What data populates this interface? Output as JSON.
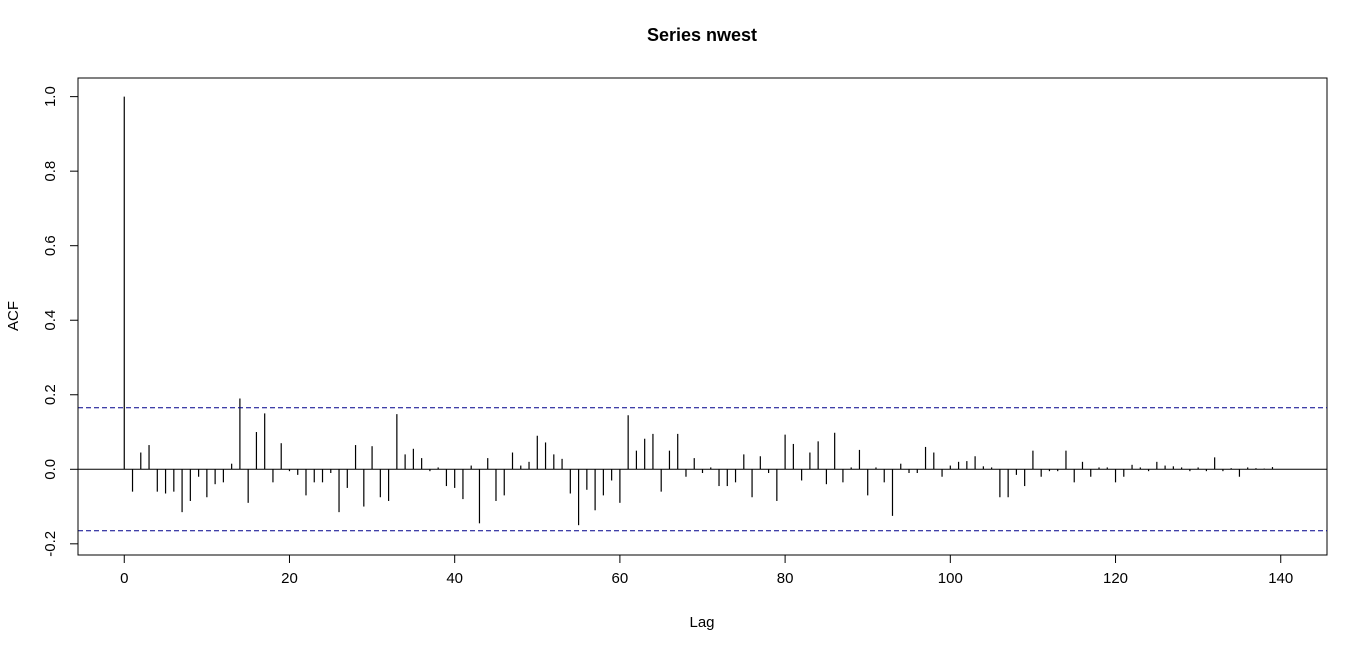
{
  "chart_data": {
    "type": "bar",
    "title": "Series  nwest",
    "xlabel": "Lag",
    "ylabel": "ACF",
    "xlim": [
      -5.6,
      145.6
    ],
    "ylim": [
      -0.23,
      1.05
    ],
    "x_ticks": [
      "0",
      "20",
      "40",
      "60",
      "80",
      "100",
      "120",
      "140"
    ],
    "y_ticks": [
      "-0.2",
      "0.0",
      "0.2",
      "0.4",
      "0.6",
      "0.8",
      "1.0"
    ],
    "confidence_limit": 0.165,
    "grid": false,
    "legend": "none",
    "line_color": "#000000",
    "ci_color": "#00008b",
    "lags": [
      0,
      1,
      2,
      3,
      4,
      5,
      6,
      7,
      8,
      9,
      10,
      11,
      12,
      13,
      14,
      15,
      16,
      17,
      18,
      19,
      20,
      21,
      22,
      23,
      24,
      25,
      26,
      27,
      28,
      29,
      30,
      31,
      32,
      33,
      34,
      35,
      36,
      37,
      38,
      39,
      40,
      41,
      42,
      43,
      44,
      45,
      46,
      47,
      48,
      49,
      50,
      51,
      52,
      53,
      54,
      55,
      56,
      57,
      58,
      59,
      60,
      61,
      62,
      63,
      64,
      65,
      66,
      67,
      68,
      69,
      70,
      71,
      72,
      73,
      74,
      75,
      76,
      77,
      78,
      79,
      80,
      81,
      82,
      83,
      84,
      85,
      86,
      87,
      88,
      89,
      90,
      91,
      92,
      93,
      94,
      95,
      96,
      97,
      98,
      99,
      100,
      101,
      102,
      103,
      104,
      105,
      106,
      107,
      108,
      109,
      110,
      111,
      112,
      113,
      114,
      115,
      116,
      117,
      118,
      119,
      120,
      121,
      122,
      123,
      124,
      125,
      126,
      127,
      128,
      129,
      130,
      131,
      132,
      133,
      134,
      135,
      136,
      137,
      138,
      139
    ],
    "acf": [
      1.0,
      -0.06,
      0.045,
      0.065,
      -0.06,
      -0.065,
      -0.06,
      -0.115,
      -0.085,
      -0.02,
      -0.075,
      -0.04,
      -0.035,
      0.015,
      0.19,
      -0.09,
      0.1,
      0.15,
      -0.035,
      0.07,
      -0.005,
      -0.015,
      -0.07,
      -0.035,
      -0.035,
      -0.01,
      -0.115,
      -0.05,
      0.065,
      -0.1,
      0.062,
      -0.075,
      -0.085,
      0.148,
      0.04,
      0.055,
      0.03,
      -0.005,
      0.005,
      -0.045,
      -0.05,
      -0.08,
      0.01,
      -0.145,
      0.03,
      -0.085,
      -0.07,
      0.045,
      0.01,
      0.02,
      0.09,
      0.072,
      0.04,
      0.028,
      -0.065,
      -0.15,
      -0.055,
      -0.11,
      -0.07,
      -0.03,
      -0.09,
      0.145,
      0.05,
      0.082,
      0.095,
      -0.06,
      0.05,
      0.095,
      -0.02,
      0.03,
      -0.01,
      0.005,
      -0.045,
      -0.045,
      -0.035,
      0.04,
      -0.075,
      0.035,
      -0.01,
      -0.085,
      0.093,
      0.068,
      -0.03,
      0.045,
      0.075,
      -0.04,
      0.098,
      -0.035,
      0.005,
      0.052,
      -0.07,
      0.005,
      -0.035,
      -0.125,
      0.015,
      -0.01,
      -0.01,
      0.06,
      0.045,
      -0.02,
      0.01,
      0.02,
      0.022,
      0.035,
      0.008,
      0.005,
      -0.075,
      -0.075,
      -0.015,
      -0.045,
      0.05,
      -0.02,
      -0.005,
      -0.005,
      0.05,
      -0.035,
      0.02,
      -0.02,
      0.005,
      0.005,
      -0.035,
      -0.02,
      0.012,
      0.005,
      -0.005,
      0.02,
      0.01,
      0.008,
      0.005,
      -0.005,
      0.005,
      -0.005,
      0.032,
      -0.005,
      0.003,
      -0.02,
      0.005,
      0.003,
      0.002,
      0.006
    ]
  }
}
